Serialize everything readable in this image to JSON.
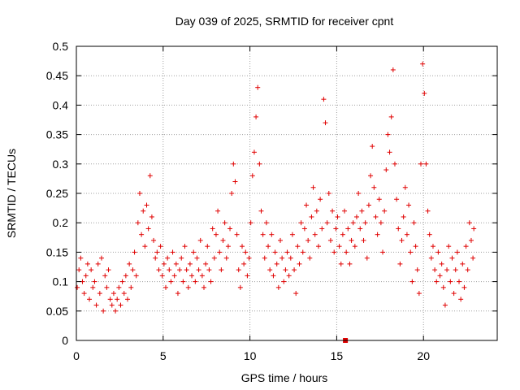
{
  "chart_data": {
    "type": "scatter",
    "title": "Day 039 of 2025, SRMTID for receiver cpnt",
    "xlabel": "GPS time / hours",
    "ylabel": "SRMTID / TECUs",
    "xlim": [
      0,
      24.25
    ],
    "ylim": [
      0,
      0.5
    ],
    "xticks": [
      0,
      5,
      10,
      15,
      20
    ],
    "yticks": [
      0,
      0.05,
      0.1,
      0.15,
      0.2,
      0.25,
      0.3,
      0.35,
      0.4,
      0.45,
      0.5
    ],
    "xtick_labels": [
      "0",
      "5",
      "10",
      "15",
      "20"
    ],
    "ytick_labels": [
      "0",
      "0.05",
      "0.1",
      "0.15",
      "0.2",
      "0.25",
      "0.3",
      "0.35",
      "0.4",
      "0.45",
      "0.5"
    ],
    "grid": true,
    "marker": "+",
    "color": "#e00000",
    "series": [
      {
        "name": "SRMTID",
        "points": [
          [
            0.05,
            0.09
          ],
          [
            0.15,
            0.12
          ],
          [
            0.25,
            0.14
          ],
          [
            0.35,
            0.1
          ],
          [
            0.45,
            0.08
          ],
          [
            0.55,
            0.11
          ],
          [
            0.65,
            0.13
          ],
          [
            0.75,
            0.07
          ],
          [
            0.85,
            0.12
          ],
          [
            0.95,
            0.09
          ],
          [
            1.05,
            0.1
          ],
          [
            1.15,
            0.06
          ],
          [
            1.25,
            0.13
          ],
          [
            1.35,
            0.08
          ],
          [
            1.45,
            0.14
          ],
          [
            1.55,
            0.05
          ],
          [
            1.65,
            0.11
          ],
          [
            1.75,
            0.09
          ],
          [
            1.85,
            0.12
          ],
          [
            1.95,
            0.07
          ],
          [
            2.05,
            0.06
          ],
          [
            2.15,
            0.08
          ],
          [
            2.25,
            0.05
          ],
          [
            2.35,
            0.07
          ],
          [
            2.45,
            0.09
          ],
          [
            2.55,
            0.06
          ],
          [
            2.65,
            0.1
          ],
          [
            2.75,
            0.08
          ],
          [
            2.85,
            0.11
          ],
          [
            2.95,
            0.07
          ],
          [
            3.05,
            0.13
          ],
          [
            3.15,
            0.09
          ],
          [
            3.25,
            0.12
          ],
          [
            3.35,
            0.15
          ],
          [
            3.45,
            0.11
          ],
          [
            3.55,
            0.2
          ],
          [
            3.65,
            0.25
          ],
          [
            3.75,
            0.18
          ],
          [
            3.85,
            0.22
          ],
          [
            3.95,
            0.16
          ],
          [
            4.05,
            0.23
          ],
          [
            4.15,
            0.19
          ],
          [
            4.25,
            0.28
          ],
          [
            4.35,
            0.21
          ],
          [
            4.45,
            0.17
          ],
          [
            4.55,
            0.14
          ],
          [
            4.65,
            0.15
          ],
          [
            4.75,
            0.12
          ],
          [
            4.85,
            0.16
          ],
          [
            4.95,
            0.11
          ],
          [
            5.05,
            0.13
          ],
          [
            5.15,
            0.09
          ],
          [
            5.25,
            0.14
          ],
          [
            5.35,
            0.12
          ],
          [
            5.45,
            0.1
          ],
          [
            5.55,
            0.15
          ],
          [
            5.65,
            0.11
          ],
          [
            5.75,
            0.13
          ],
          [
            5.85,
            0.08
          ],
          [
            5.95,
            0.12
          ],
          [
            6.05,
            0.14
          ],
          [
            6.15,
            0.1
          ],
          [
            6.25,
            0.16
          ],
          [
            6.35,
            0.12
          ],
          [
            6.45,
            0.09
          ],
          [
            6.55,
            0.13
          ],
          [
            6.65,
            0.11
          ],
          [
            6.75,
            0.15
          ],
          [
            6.85,
            0.1
          ],
          [
            6.95,
            0.14
          ],
          [
            7.05,
            0.12
          ],
          [
            7.15,
            0.17
          ],
          [
            7.25,
            0.11
          ],
          [
            7.35,
            0.09
          ],
          [
            7.45,
            0.13
          ],
          [
            7.55,
            0.16
          ],
          [
            7.65,
            0.12
          ],
          [
            7.75,
            0.1
          ],
          [
            7.85,
            0.19
          ],
          [
            7.95,
            0.14
          ],
          [
            8.05,
            0.18
          ],
          [
            8.15,
            0.22
          ],
          [
            8.25,
            0.15
          ],
          [
            8.35,
            0.12
          ],
          [
            8.45,
            0.17
          ],
          [
            8.55,
            0.2
          ],
          [
            8.65,
            0.14
          ],
          [
            8.75,
            0.16
          ],
          [
            8.85,
            0.19
          ],
          [
            8.95,
            0.25
          ],
          [
            9.05,
            0.3
          ],
          [
            9.15,
            0.27
          ],
          [
            9.25,
            0.18
          ],
          [
            9.35,
            0.12
          ],
          [
            9.45,
            0.09
          ],
          [
            9.55,
            0.16
          ],
          [
            9.65,
            0.13
          ],
          [
            9.75,
            0.15
          ],
          [
            9.85,
            0.11
          ],
          [
            9.95,
            0.14
          ],
          [
            10.05,
            0.2
          ],
          [
            10.15,
            0.28
          ],
          [
            10.25,
            0.32
          ],
          [
            10.35,
            0.38
          ],
          [
            10.45,
            0.43
          ],
          [
            10.55,
            0.3
          ],
          [
            10.65,
            0.22
          ],
          [
            10.75,
            0.18
          ],
          [
            10.85,
            0.14
          ],
          [
            10.95,
            0.2
          ],
          [
            11.05,
            0.16
          ],
          [
            11.15,
            0.12
          ],
          [
            11.25,
            0.18
          ],
          [
            11.35,
            0.11
          ],
          [
            11.45,
            0.15
          ],
          [
            11.55,
            0.13
          ],
          [
            11.65,
            0.09
          ],
          [
            11.75,
            0.17
          ],
          [
            11.85,
            0.14
          ],
          [
            11.95,
            0.1
          ],
          [
            12.05,
            0.12
          ],
          [
            12.15,
            0.15
          ],
          [
            12.25,
            0.11
          ],
          [
            12.35,
            0.14
          ],
          [
            12.45,
            0.18
          ],
          [
            12.55,
            0.12
          ],
          [
            12.65,
            0.08
          ],
          [
            12.75,
            0.16
          ],
          [
            12.85,
            0.13
          ],
          [
            12.95,
            0.2
          ],
          [
            13.05,
            0.15
          ],
          [
            13.15,
            0.19
          ],
          [
            13.25,
            0.23
          ],
          [
            13.35,
            0.17
          ],
          [
            13.45,
            0.14
          ],
          [
            13.55,
            0.21
          ],
          [
            13.65,
            0.26
          ],
          [
            13.75,
            0.18
          ],
          [
            13.85,
            0.22
          ],
          [
            13.95,
            0.16
          ],
          [
            14.05,
            0.24
          ],
          [
            14.15,
            0.19
          ],
          [
            14.25,
            0.41
          ],
          [
            14.35,
            0.37
          ],
          [
            14.45,
            0.2
          ],
          [
            14.55,
            0.25
          ],
          [
            14.65,
            0.17
          ],
          [
            14.75,
            0.22
          ],
          [
            14.85,
            0.15
          ],
          [
            14.95,
            0.19
          ],
          [
            15.05,
            0.21
          ],
          [
            15.15,
            0.16
          ],
          [
            15.25,
            0.13
          ],
          [
            15.35,
            0.18
          ],
          [
            15.45,
            0.22
          ],
          [
            15.55,
            0.15
          ],
          [
            15.65,
            0.19
          ],
          [
            15.75,
            0.13
          ],
          [
            15.85,
            0.17
          ],
          [
            15.95,
            0.2
          ],
          [
            16.05,
            0.16
          ],
          [
            16.15,
            0.21
          ],
          [
            16.25,
            0.25
          ],
          [
            16.35,
            0.19
          ],
          [
            16.45,
            0.22
          ],
          [
            16.55,
            0.17
          ],
          [
            16.65,
            0.2
          ],
          [
            16.75,
            0.14
          ],
          [
            16.85,
            0.23
          ],
          [
            16.95,
            0.28
          ],
          [
            17.05,
            0.33
          ],
          [
            17.15,
            0.26
          ],
          [
            17.25,
            0.21
          ],
          [
            17.35,
            0.18
          ],
          [
            17.45,
            0.24
          ],
          [
            17.55,
            0.2
          ],
          [
            17.65,
            0.15
          ],
          [
            17.75,
            0.22
          ],
          [
            17.85,
            0.29
          ],
          [
            17.95,
            0.35
          ],
          [
            18.05,
            0.32
          ],
          [
            18.15,
            0.38
          ],
          [
            18.25,
            0.46
          ],
          [
            18.35,
            0.3
          ],
          [
            18.45,
            0.24
          ],
          [
            18.55,
            0.19
          ],
          [
            18.65,
            0.13
          ],
          [
            18.75,
            0.17
          ],
          [
            18.85,
            0.21
          ],
          [
            18.95,
            0.26
          ],
          [
            19.05,
            0.18
          ],
          [
            19.15,
            0.23
          ],
          [
            19.25,
            0.15
          ],
          [
            19.35,
            0.1
          ],
          [
            19.45,
            0.2
          ],
          [
            19.55,
            0.16
          ],
          [
            19.65,
            0.12
          ],
          [
            19.75,
            0.08
          ],
          [
            19.85,
            0.3
          ],
          [
            19.95,
            0.47
          ],
          [
            20.05,
            0.42
          ],
          [
            20.15,
            0.3
          ],
          [
            20.25,
            0.22
          ],
          [
            20.35,
            0.18
          ],
          [
            20.45,
            0.14
          ],
          [
            20.55,
            0.16
          ],
          [
            20.65,
            0.12
          ],
          [
            20.75,
            0.1
          ],
          [
            20.85,
            0.15
          ],
          [
            20.95,
            0.11
          ],
          [
            21.05,
            0.13
          ],
          [
            21.15,
            0.09
          ],
          [
            21.25,
            0.06
          ],
          [
            21.35,
            0.12
          ],
          [
            21.45,
            0.16
          ],
          [
            21.55,
            0.1
          ],
          [
            21.65,
            0.14
          ],
          [
            21.75,
            0.08
          ],
          [
            21.85,
            0.12
          ],
          [
            21.95,
            0.15
          ],
          [
            22.05,
            0.1
          ],
          [
            22.15,
            0.07
          ],
          [
            22.25,
            0.13
          ],
          [
            22.35,
            0.09
          ],
          [
            22.45,
            0.16
          ],
          [
            22.55,
            0.12
          ],
          [
            22.65,
            0.2
          ],
          [
            22.75,
            0.17
          ],
          [
            22.85,
            0.14
          ],
          [
            22.9,
            0.19
          ]
        ]
      }
    ],
    "outlier_marker": {
      "x": 15.5,
      "y": 0.0
    }
  }
}
